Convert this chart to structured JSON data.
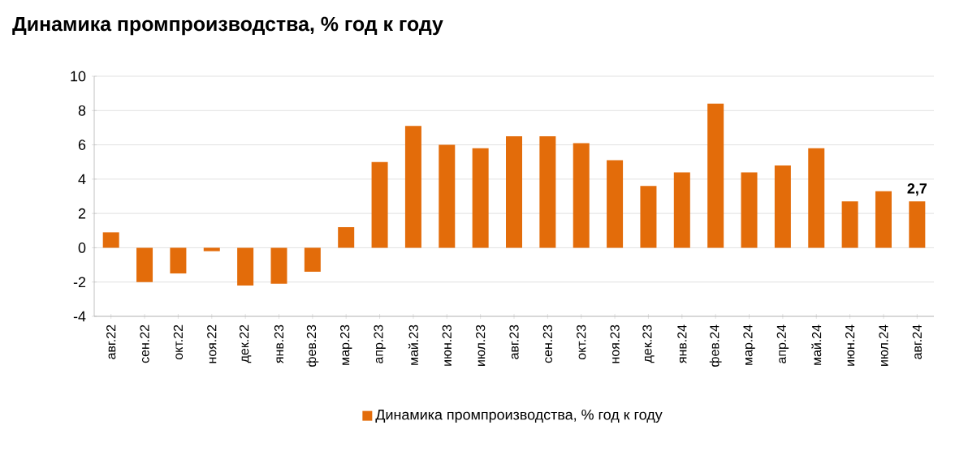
{
  "chart_data": {
    "type": "bar",
    "title": "Динамика промпроизводства, % год к году",
    "categories": [
      "авг.22",
      "сен.22",
      "окт.22",
      "ноя.22",
      "дек.22",
      "янв.23",
      "фев.23",
      "мар.23",
      "апр.23",
      "май.23",
      "июн.23",
      "июл.23",
      "авг.23",
      "сен.23",
      "окт.23",
      "ноя.23",
      "дек.23",
      "янв.24",
      "фев.24",
      "мар.24",
      "апр.24",
      "май.24",
      "июн.24",
      "июл.24",
      "авг.24"
    ],
    "series": [
      {
        "name": "Динамика промпроизводства, % год к году",
        "color": "#e36c0a",
        "values": [
          0.9,
          -2.0,
          -1.5,
          -0.2,
          -2.2,
          -2.1,
          -1.4,
          1.2,
          5.0,
          7.1,
          6.0,
          5.8,
          6.5,
          6.5,
          6.1,
          5.1,
          3.6,
          4.4,
          8.4,
          4.4,
          4.8,
          5.8,
          2.7,
          3.3,
          2.7
        ],
        "value_labels": [
          null,
          null,
          null,
          null,
          null,
          null,
          null,
          null,
          null,
          null,
          null,
          null,
          null,
          null,
          null,
          null,
          null,
          null,
          null,
          null,
          null,
          null,
          null,
          null,
          "2,7"
        ]
      }
    ],
    "ylim": [
      -4,
      10
    ],
    "yticks": [
      -4,
      -2,
      0,
      2,
      4,
      6,
      8,
      10
    ],
    "grid": "y",
    "legend": "bottom"
  }
}
